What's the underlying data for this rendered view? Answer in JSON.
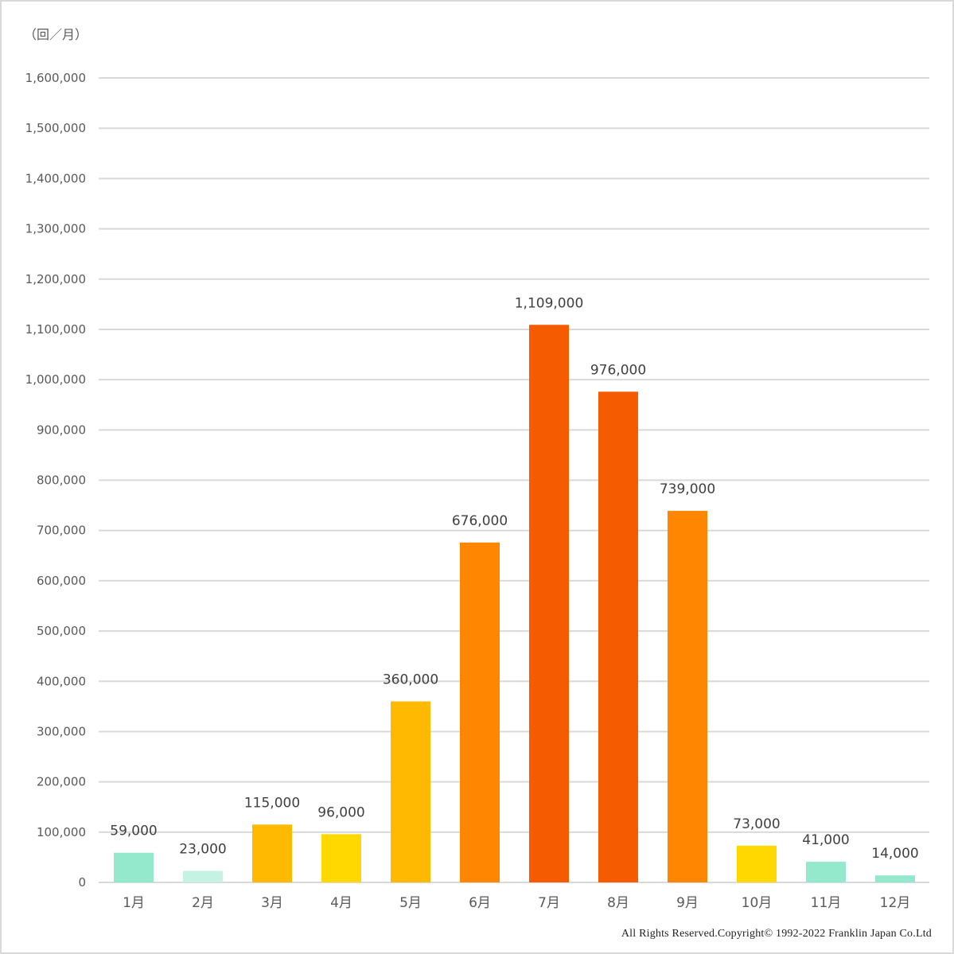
{
  "chart_data": {
    "type": "bar",
    "title": "",
    "unit_label": "（回／月）",
    "xlabel": "",
    "ylabel": "",
    "ylim": [
      0,
      1600000
    ],
    "ytick_step": 100000,
    "ytick_labels": [
      "0",
      "100,000",
      "200,000",
      "300,000",
      "400,000",
      "500,000",
      "600,000",
      "700,000",
      "800,000",
      "900,000",
      "1,000,000",
      "1,100,000",
      "1,200,000",
      "1,300,000",
      "1,400,000",
      "1,500,000",
      "1,600,000"
    ],
    "grid": true,
    "categories": [
      "1月",
      "2月",
      "3月",
      "4月",
      "5月",
      "6月",
      "7月",
      "8月",
      "9月",
      "10月",
      "11月",
      "12月"
    ],
    "values": [
      59000,
      23000,
      115000,
      96000,
      360000,
      676000,
      1109000,
      976000,
      739000,
      73000,
      41000,
      14000
    ],
    "value_labels": [
      "59,000",
      "23,000",
      "115,000",
      "96,000",
      "360,000",
      "676,000",
      "1,109,000",
      "976,000",
      "739,000",
      "73,000",
      "41,000",
      "14,000"
    ],
    "bar_colors": [
      "#94e8cb",
      "#c5f2e2",
      "#ffb900",
      "#ffd800",
      "#ffb900",
      "#ff8600",
      "#f55b00",
      "#f55b00",
      "#ff8600",
      "#ffd800",
      "#94e8cb",
      "#94e8cb"
    ]
  },
  "footer": {
    "copyright": "All  Rights  Reserved.Copyright©  1992-2022 Franklin  Japan  Co.Ltd"
  },
  "colors": {
    "grid": "#d9d9d9",
    "axis_text": "#595959",
    "label_text": "#404040"
  }
}
